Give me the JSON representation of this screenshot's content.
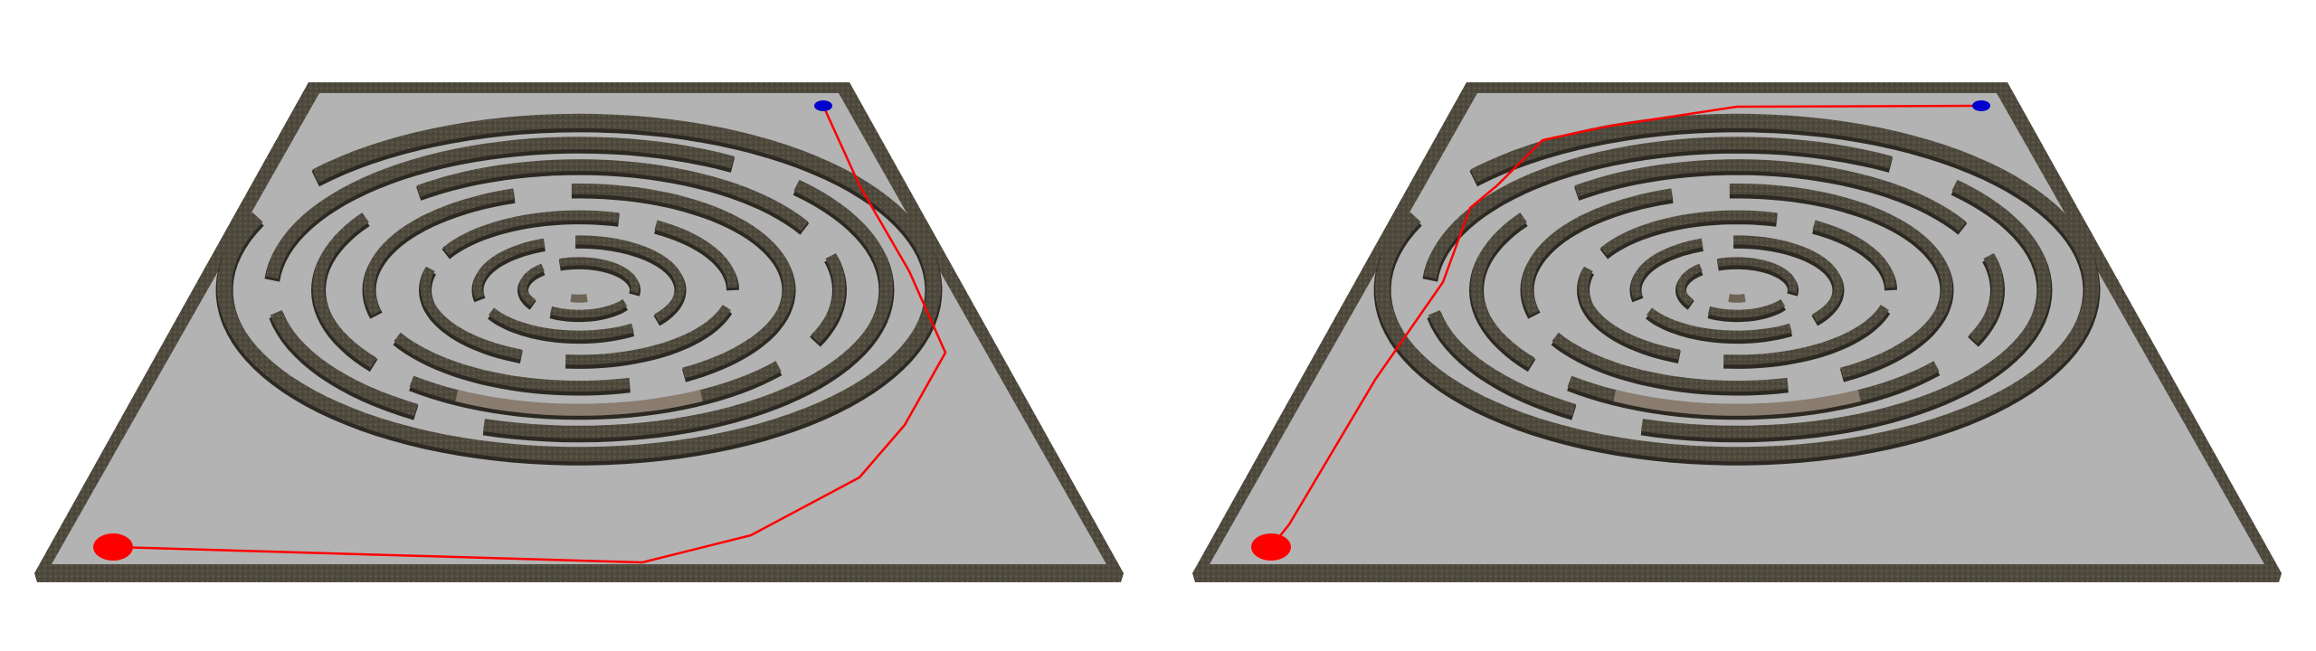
{
  "scenes": [
    {
      "id": "left",
      "path_route": "around-right-side"
    },
    {
      "id": "right",
      "path_route": "along-left-and-top"
    }
  ],
  "colors": {
    "background": "#ffffff",
    "floor": "#b3b3b3",
    "border_wall": "#5a5446",
    "maze_wall": "#4f4a3e",
    "maze_wall_light": "#8a7d70",
    "start_marker": "#ff0000",
    "goal_marker": "#0000cc",
    "path_line": "#ff0000"
  },
  "icons": {
    "start": "start-ellipse-icon",
    "goal": "goal-ellipse-icon"
  }
}
